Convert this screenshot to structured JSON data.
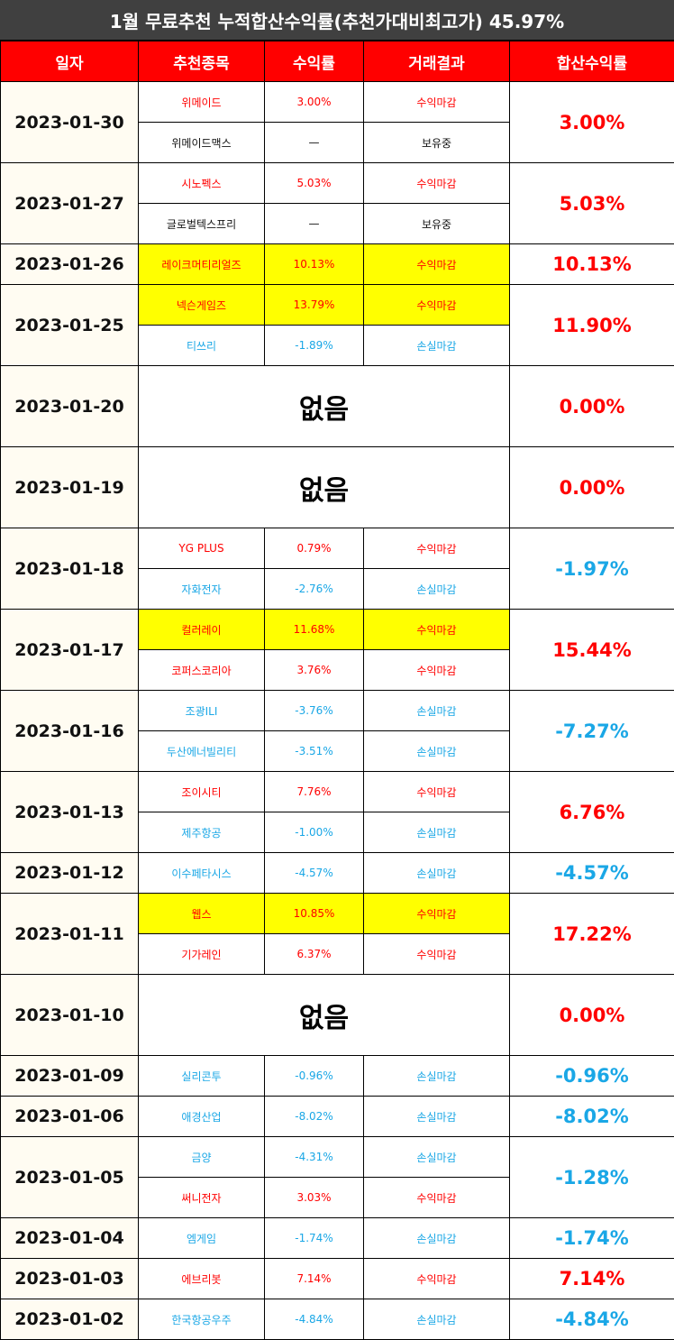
{
  "title": "1월 무료추천 누적합산수익률(추천가대비최고가) 45.97%",
  "headers": [
    "일자",
    "추천종목",
    "수익률",
    "거래결과",
    "합산수익률"
  ],
  "none_label": "없음",
  "colors": {
    "red": "#ff0000",
    "blue": "#1aa7e6",
    "highlight": "#ffff00",
    "header_bg": "#ff0000",
    "title_bg": "#404040"
  },
  "groups": [
    {
      "date": "2023-01-30",
      "total": "3.00%",
      "total_color": "red",
      "rows": [
        {
          "name": "위메이드",
          "ret": "3.00%",
          "result": "수익마감",
          "color": "red",
          "hl": false
        },
        {
          "name": "위메이드맥스",
          "ret": "—",
          "result": "보유중",
          "color": "black",
          "hl": false
        }
      ]
    },
    {
      "date": "2023-01-27",
      "total": "5.03%",
      "total_color": "red",
      "rows": [
        {
          "name": "시노펙스",
          "ret": "5.03%",
          "result": "수익마감",
          "color": "red",
          "hl": false
        },
        {
          "name": "글로벌텍스프리",
          "ret": "—",
          "result": "보유중",
          "color": "black",
          "hl": false
        }
      ]
    },
    {
      "date": "2023-01-26",
      "total": "10.13%",
      "total_color": "red",
      "rows": [
        {
          "name": "레이크머티리얼즈",
          "ret": "10.13%",
          "result": "수익마감",
          "color": "red",
          "hl": true
        }
      ]
    },
    {
      "date": "2023-01-25",
      "total": "11.90%",
      "total_color": "red",
      "rows": [
        {
          "name": "넥슨게임즈",
          "ret": "13.79%",
          "result": "수익마감",
          "color": "red",
          "hl": true
        },
        {
          "name": "티쓰리",
          "ret": "-1.89%",
          "result": "손실마감",
          "color": "blue",
          "hl": false
        }
      ]
    },
    {
      "date": "2023-01-20",
      "total": "0.00%",
      "total_color": "red",
      "none": true,
      "rows": []
    },
    {
      "date": "2023-01-19",
      "total": "0.00%",
      "total_color": "red",
      "none": true,
      "rows": []
    },
    {
      "date": "2023-01-18",
      "total": "-1.97%",
      "total_color": "blue",
      "rows": [
        {
          "name": "YG PLUS",
          "ret": "0.79%",
          "result": "수익마감",
          "color": "red",
          "hl": false
        },
        {
          "name": "자화전자",
          "ret": "-2.76%",
          "result": "손실마감",
          "color": "blue",
          "hl": false
        }
      ]
    },
    {
      "date": "2023-01-17",
      "total": "15.44%",
      "total_color": "red",
      "rows": [
        {
          "name": "컬러레이",
          "ret": "11.68%",
          "result": "수익마감",
          "color": "red",
          "hl": true
        },
        {
          "name": "코퍼스코리아",
          "ret": "3.76%",
          "result": "수익마감",
          "color": "red",
          "hl": false
        }
      ]
    },
    {
      "date": "2023-01-16",
      "total": "-7.27%",
      "total_color": "blue",
      "rows": [
        {
          "name": "조광ILI",
          "ret": "-3.76%",
          "result": "손실마감",
          "color": "blue",
          "hl": false
        },
        {
          "name": "두산에너빌리티",
          "ret": "-3.51%",
          "result": "손실마감",
          "color": "blue",
          "hl": false
        }
      ]
    },
    {
      "date": "2023-01-13",
      "total": "6.76%",
      "total_color": "red",
      "rows": [
        {
          "name": "조이시티",
          "ret": "7.76%",
          "result": "수익마감",
          "color": "red",
          "hl": false
        },
        {
          "name": "제주항공",
          "ret": "-1.00%",
          "result": "손실마감",
          "color": "blue",
          "hl": false
        }
      ]
    },
    {
      "date": "2023-01-12",
      "total": "-4.57%",
      "total_color": "blue",
      "rows": [
        {
          "name": "이수페타시스",
          "ret": "-4.57%",
          "result": "손실마감",
          "color": "blue",
          "hl": false
        }
      ]
    },
    {
      "date": "2023-01-11",
      "total": "17.22%",
      "total_color": "red",
      "rows": [
        {
          "name": "웹스",
          "ret": "10.85%",
          "result": "수익마감",
          "color": "red",
          "hl": true
        },
        {
          "name": "기가레인",
          "ret": "6.37%",
          "result": "수익마감",
          "color": "red",
          "hl": false
        }
      ]
    },
    {
      "date": "2023-01-10",
      "total": "0.00%",
      "total_color": "red",
      "none": true,
      "rows": []
    },
    {
      "date": "2023-01-09",
      "total": "-0.96%",
      "total_color": "blue",
      "rows": [
        {
          "name": "실리콘투",
          "ret": "-0.96%",
          "result": "손실마감",
          "color": "blue",
          "hl": false
        }
      ]
    },
    {
      "date": "2023-01-06",
      "total": "-8.02%",
      "total_color": "blue",
      "rows": [
        {
          "name": "애경산업",
          "ret": "-8.02%",
          "result": "손실마감",
          "color": "blue",
          "hl": false
        }
      ]
    },
    {
      "date": "2023-01-05",
      "total": "-1.28%",
      "total_color": "blue",
      "rows": [
        {
          "name": "금양",
          "ret": "-4.31%",
          "result": "손실마감",
          "color": "blue",
          "hl": false
        },
        {
          "name": "써니전자",
          "ret": "3.03%",
          "result": "수익마감",
          "color": "red",
          "hl": false
        }
      ]
    },
    {
      "date": "2023-01-04",
      "total": "-1.74%",
      "total_color": "blue",
      "rows": [
        {
          "name": "엠게임",
          "ret": "-1.74%",
          "result": "손실마감",
          "color": "blue",
          "hl": false
        }
      ]
    },
    {
      "date": "2023-01-03",
      "total": "7.14%",
      "total_color": "red",
      "rows": [
        {
          "name": "에브리봇",
          "ret": "7.14%",
          "result": "수익마감",
          "color": "red",
          "hl": false
        }
      ]
    },
    {
      "date": "2023-01-02",
      "total": "-4.84%",
      "total_color": "blue",
      "rows": [
        {
          "name": "한국항공우주",
          "ret": "-4.84%",
          "result": "손실마감",
          "color": "blue",
          "hl": false
        }
      ]
    }
  ]
}
